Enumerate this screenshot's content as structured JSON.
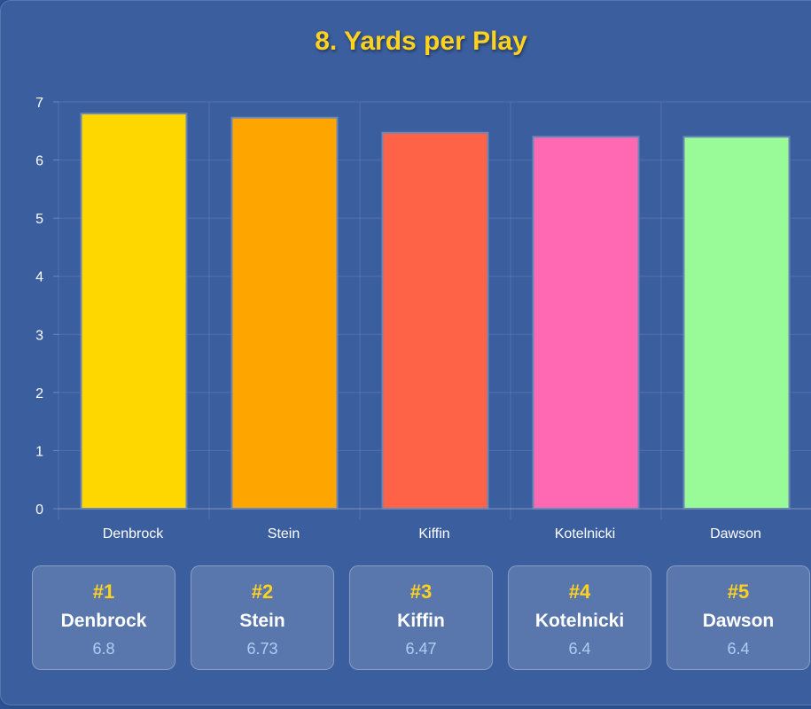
{
  "title": "8. Yards per Play",
  "chart_data": {
    "type": "bar",
    "categories": [
      "Denbrock",
      "Stein",
      "Kiffin",
      "Kotelnicki",
      "Dawson"
    ],
    "values": [
      6.8,
      6.73,
      6.47,
      6.4,
      6.4
    ],
    "ylim": [
      0,
      7
    ],
    "yticks": [
      "0",
      "1",
      "2",
      "3",
      "4",
      "5",
      "6",
      "7"
    ],
    "colors": [
      "#ffd700",
      "#ffa500",
      "#ff6347",
      "#ff69b4",
      "#98fb98"
    ],
    "bar_border_color": "#6b87b8",
    "grid": true,
    "title": "8. Yards per Play",
    "xlabel": "",
    "ylabel": ""
  },
  "stats": [
    {
      "rank": "#1",
      "name": "Denbrock",
      "value": "6.8"
    },
    {
      "rank": "#2",
      "name": "Stein",
      "value": "6.73"
    },
    {
      "rank": "#3",
      "name": "Kiffin",
      "value": "6.47"
    },
    {
      "rank": "#4",
      "name": "Kotelnicki",
      "value": "6.4"
    },
    {
      "rank": "#5",
      "name": "Dawson",
      "value": "6.4"
    }
  ]
}
